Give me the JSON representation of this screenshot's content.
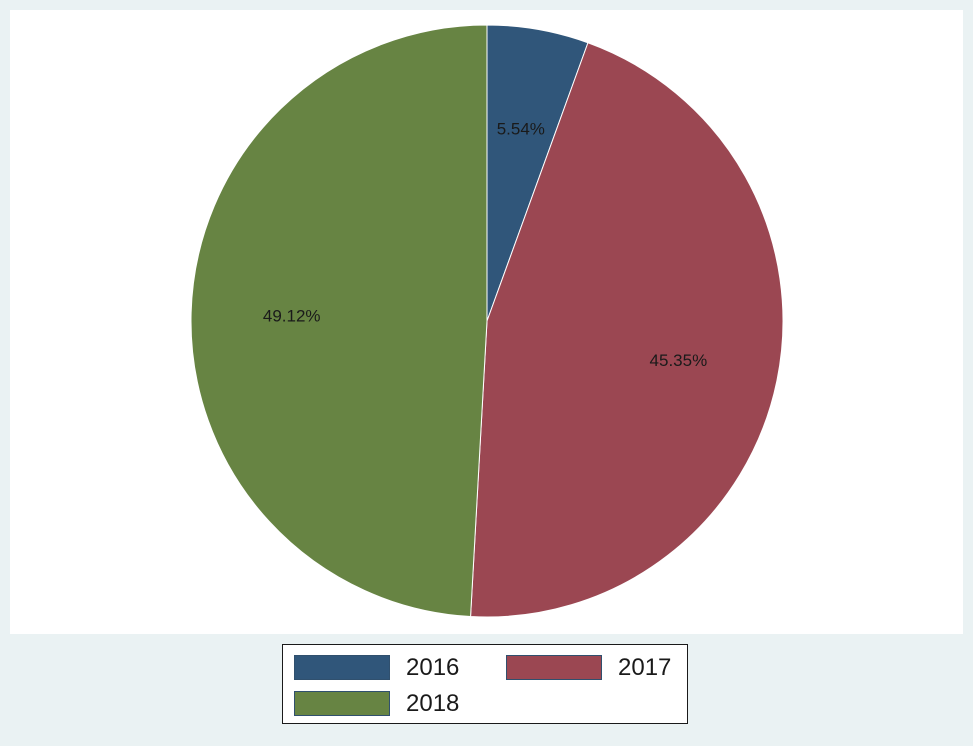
{
  "chart_data": {
    "type": "pie",
    "categories": [
      "2016",
      "2017",
      "2018"
    ],
    "values": [
      5.54,
      45.35,
      49.12
    ],
    "data_labels": [
      "5.54%",
      "45.35%",
      "49.12%"
    ],
    "colors": [
      "#30567a",
      "#9b4752",
      "#678443"
    ],
    "legend_position": "bottom",
    "title": "",
    "start_angle": "12 o'clock",
    "direction": "clockwise"
  }
}
